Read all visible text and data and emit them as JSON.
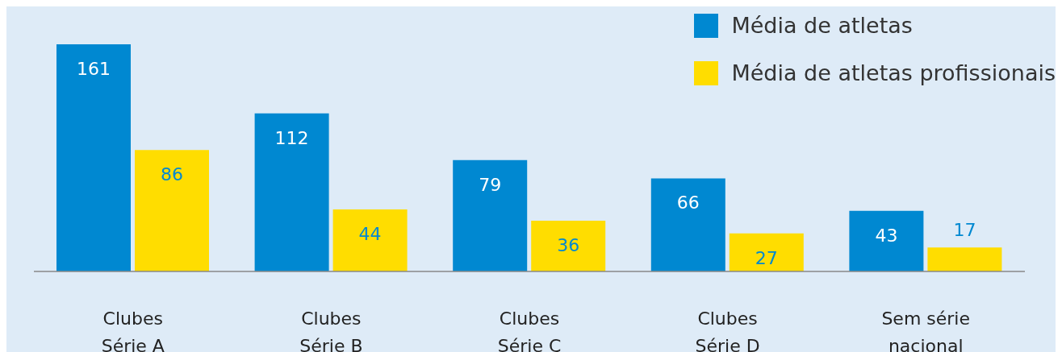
{
  "chart_data": {
    "type": "bar",
    "categories": [
      "Clubes\nSérie A",
      "Clubes\nSérie B",
      "Clubes\nSérie C",
      "Clubes\nSérie D",
      "Sem série\nnacional"
    ],
    "series": [
      {
        "name": "Média de atletas",
        "color": "#0088d1",
        "values": [
          161,
          112,
          79,
          66,
          43
        ]
      },
      {
        "name": "Média de atletas profissionais",
        "color": "#ffdd00",
        "values": [
          86,
          44,
          36,
          27,
          17
        ]
      }
    ],
    "data_labels": true,
    "legend": "top right",
    "grid": false
  }
}
